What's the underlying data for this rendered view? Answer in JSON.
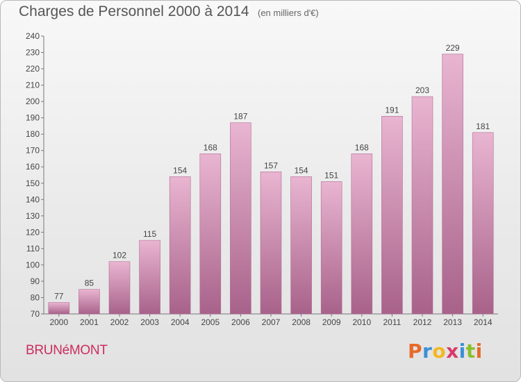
{
  "colors": {
    "bar": "#c97fa8",
    "bar_light": "#e9b5d1",
    "bar_dark": "#a8628a",
    "title": "#555555",
    "accent": "#cc2d5f",
    "axis": "#777777"
  },
  "chart_data": {
    "type": "bar",
    "title": "Charges de Personnel 2000 à 2014",
    "subtitle": "(en milliers d'€)",
    "categories": [
      "2000",
      "2001",
      "2002",
      "2003",
      "2004",
      "2005",
      "2006",
      "2007",
      "2008",
      "2009",
      "2010",
      "2011",
      "2012",
      "2013",
      "2014"
    ],
    "values": [
      77,
      85,
      102,
      115,
      154,
      168,
      187,
      157,
      154,
      151,
      168,
      191,
      203,
      229,
      181
    ],
    "ylim": [
      70,
      240
    ],
    "yticks": [
      70,
      80,
      90,
      100,
      110,
      120,
      130,
      140,
      150,
      160,
      170,
      180,
      190,
      200,
      210,
      220,
      230,
      240
    ],
    "grid": false,
    "xlabel": "",
    "ylabel": ""
  },
  "footer": {
    "commune": "BRUNéMONT",
    "logo_letters": [
      {
        "char": "P",
        "color": "#e86a2a"
      },
      {
        "char": "r",
        "color": "#3c8fd6"
      },
      {
        "char": "o",
        "color": "#f2b81f"
      },
      {
        "char": "x",
        "color": "#d93a6b"
      },
      {
        "char": "i",
        "color": "#3c8fd6"
      },
      {
        "char": "t",
        "color": "#8bbf2a"
      },
      {
        "char": "i",
        "color": "#e86a2a"
      }
    ]
  }
}
